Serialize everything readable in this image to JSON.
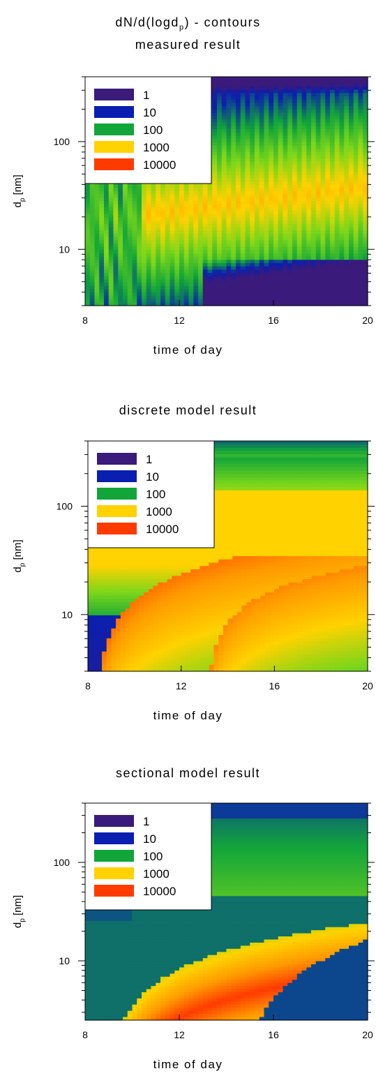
{
  "page": {
    "title_main": "dN/d(logd",
    "title_main_sub": "p",
    "title_main_tail": ") - contours",
    "subtitle": "measured result"
  },
  "colors": {
    "dark_purple": "#3a1a7a",
    "blue": "#0a1fb0",
    "green": "#12a53a",
    "lightgreen": "#7ad61a",
    "yellow": "#ffd200",
    "orange": "#ff9a00",
    "red": "#ff3a00"
  },
  "legend": {
    "entries": [
      {
        "label": "1",
        "color": "#3a1a7a"
      },
      {
        "label": "10",
        "color": "#0a1fb0"
      },
      {
        "label": "100",
        "color": "#12a53a"
      },
      {
        "label": "1000",
        "color": "#ffd200"
      },
      {
        "label": "10000",
        "color": "#ff3a00"
      }
    ],
    "placement": "top-left"
  },
  "chart_data": [
    {
      "type": "heatmap",
      "title": "measured result",
      "xlabel": "time of day",
      "ylabel_base": "d",
      "ylabel_sub": "p",
      "ylabel_tail": " [nm]",
      "xlim": [
        8,
        20
      ],
      "ylim": [
        3,
        400
      ],
      "yscale": "log",
      "x_ticks": [
        "8",
        "12",
        "16",
        "20"
      ],
      "y_ticks": [
        "10",
        "100"
      ],
      "legend": [
        "1",
        "10",
        "100",
        "1000",
        "10000"
      ],
      "mode": "fraction_concentration_(dN/dlogdp)",
      "peak_mode_nm": [
        {
          "x": 12,
          "y": 22
        },
        {
          "x": 16,
          "y": 30
        },
        {
          "x": 20,
          "y": 38
        }
      ]
    },
    {
      "type": "heatmap",
      "title": "discrete model result",
      "xlabel": "time of day",
      "ylabel_base": "d",
      "ylabel_sub": "p",
      "ylabel_tail": " [nm]",
      "xlim": [
        8,
        20
      ],
      "ylim": [
        3,
        400
      ],
      "yscale": "log",
      "x_ticks": [
        "8",
        "12",
        "16",
        "20"
      ],
      "y_ticks": [
        "10",
        "100"
      ],
      "legend": [
        "1",
        "10",
        "100",
        "1000",
        "10000"
      ],
      "growth_front_nm": [
        {
          "x": 8.5,
          "y": 3
        },
        {
          "x": 12,
          "y": 10
        },
        {
          "x": 16,
          "y": 18
        },
        {
          "x": 20,
          "y": 28
        }
      ]
    },
    {
      "type": "heatmap",
      "title": "sectional model result",
      "xlabel": "time of day",
      "ylabel_base": "d",
      "ylabel_sub": "p",
      "ylabel_tail": " [nm]",
      "xlim": [
        8,
        20
      ],
      "ylim": [
        2.5,
        400
      ],
      "yscale": "log",
      "x_ticks": [
        "8",
        "12",
        "16",
        "20"
      ],
      "y_ticks": [
        "10",
        "100"
      ],
      "legend": [
        "1",
        "10",
        "100",
        "1000",
        "10000"
      ],
      "growth_front_nm": [
        {
          "x": 9,
          "y": 3
        },
        {
          "x": 12,
          "y": 8
        },
        {
          "x": 16,
          "y": 18
        },
        {
          "x": 20,
          "y": 30
        }
      ]
    }
  ]
}
